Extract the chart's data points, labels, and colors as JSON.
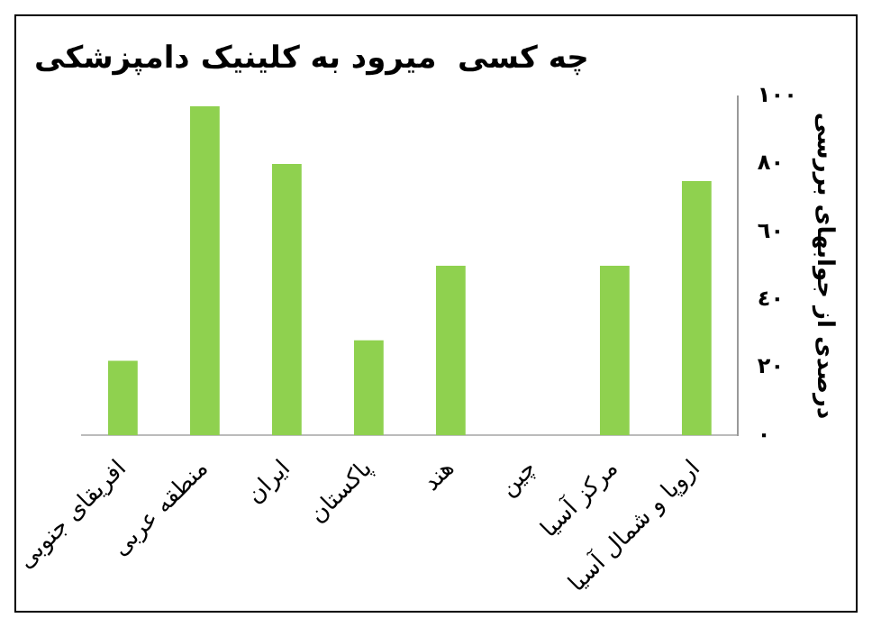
{
  "chart_data": {
    "type": "bar",
    "title": "چه کسی  میرود به کلینیک دامپزشکی",
    "ylabel": "درصدی از جوابهای بررسی",
    "categories": [
      "افریقای جنوبی",
      "منطقه عربی",
      "ایران",
      "پاکستان",
      "هند",
      "چین",
      "مرکز آسیا",
      "اروپا و شمال آسیا"
    ],
    "values": [
      22,
      97,
      80,
      28,
      50,
      0,
      50,
      75
    ],
    "color": "#8fd14f",
    "ylim": [
      0,
      100
    ],
    "yticks": [
      {
        "value": 0,
        "label": "٠"
      },
      {
        "value": 20,
        "label": "٢٠"
      },
      {
        "value": 40,
        "label": "٤٠"
      },
      {
        "value": 60,
        "label": "٦٠"
      },
      {
        "value": 80,
        "label": "٨٠"
      },
      {
        "value": 100,
        "label": "١٠٠"
      }
    ],
    "grid": false,
    "legend": false
  }
}
